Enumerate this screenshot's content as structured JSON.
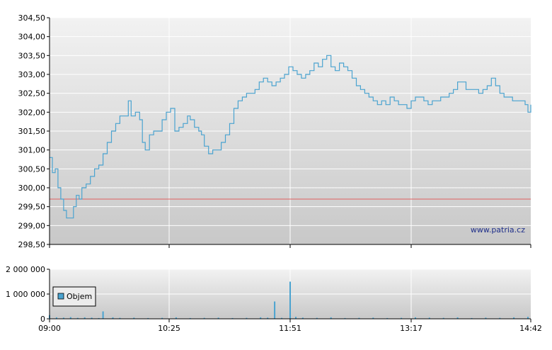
{
  "watermark": "www.patria.cz",
  "colors": {
    "price_line": "#4aa3d0",
    "reference_line": "#e06060",
    "volume_bar": "#4aa3d0",
    "grid": "#ffffff",
    "axis": "#000000"
  },
  "chart_data": [
    {
      "type": "line",
      "title": "",
      "ylim": [
        298.5,
        304.5
      ],
      "y_ticks": [
        "298,50",
        "299,00",
        "299,50",
        "300,00",
        "300,50",
        "301,00",
        "301,50",
        "302,00",
        "302,50",
        "303,00",
        "303,50",
        "304,00",
        "304,50"
      ],
      "y_tick_values": [
        298.5,
        299,
        299.5,
        300,
        300.5,
        301,
        301.5,
        302,
        302.5,
        303,
        303.5,
        304,
        304.5
      ],
      "x_ticks": [
        "09:00",
        "10:25",
        "11:51",
        "13:17",
        "14:42"
      ],
      "reference_value": 299.7,
      "series": [
        {
          "values": [
            [
              "09:00",
              300.8
            ],
            [
              "09:02",
              300.4
            ],
            [
              "09:04",
              300.5
            ],
            [
              "09:06",
              300.0
            ],
            [
              "09:08",
              299.7
            ],
            [
              "09:10",
              299.4
            ],
            [
              "09:12",
              299.2
            ],
            [
              "09:15",
              299.2
            ],
            [
              "09:17",
              299.5
            ],
            [
              "09:19",
              299.8
            ],
            [
              "09:21",
              299.7
            ],
            [
              "09:23",
              300.0
            ],
            [
              "09:26",
              300.1
            ],
            [
              "09:29",
              300.3
            ],
            [
              "09:32",
              300.5
            ],
            [
              "09:35",
              300.6
            ],
            [
              "09:38",
              300.9
            ],
            [
              "09:41",
              301.2
            ],
            [
              "09:44",
              301.5
            ],
            [
              "09:47",
              301.7
            ],
            [
              "09:50",
              301.9
            ],
            [
              "09:53",
              301.9
            ],
            [
              "09:56",
              302.3
            ],
            [
              "09:58",
              301.9
            ],
            [
              "10:01",
              302.0
            ],
            [
              "10:04",
              301.8
            ],
            [
              "10:06",
              301.2
            ],
            [
              "10:08",
              301.0
            ],
            [
              "10:11",
              301.4
            ],
            [
              "10:14",
              301.5
            ],
            [
              "10:17",
              301.5
            ],
            [
              "10:20",
              301.8
            ],
            [
              "10:23",
              302.0
            ],
            [
              "10:26",
              302.1
            ],
            [
              "10:29",
              301.5
            ],
            [
              "10:32",
              301.6
            ],
            [
              "10:35",
              301.7
            ],
            [
              "10:38",
              301.9
            ],
            [
              "10:40",
              301.8
            ],
            [
              "10:43",
              301.6
            ],
            [
              "10:46",
              301.5
            ],
            [
              "10:48",
              301.4
            ],
            [
              "10:50",
              301.1
            ],
            [
              "10:53",
              300.9
            ],
            [
              "10:56",
              301.0
            ],
            [
              "10:59",
              301.0
            ],
            [
              "11:02",
              301.2
            ],
            [
              "11:05",
              301.4
            ],
            [
              "11:08",
              301.7
            ],
            [
              "11:11",
              302.1
            ],
            [
              "11:14",
              302.3
            ],
            [
              "11:17",
              302.4
            ],
            [
              "11:20",
              302.5
            ],
            [
              "11:23",
              302.5
            ],
            [
              "11:26",
              302.6
            ],
            [
              "11:29",
              302.8
            ],
            [
              "11:32",
              302.9
            ],
            [
              "11:35",
              302.8
            ],
            [
              "11:38",
              302.7
            ],
            [
              "11:41",
              302.8
            ],
            [
              "11:44",
              302.9
            ],
            [
              "11:47",
              303.0
            ],
            [
              "11:50",
              303.2
            ],
            [
              "11:53",
              303.1
            ],
            [
              "11:56",
              303.0
            ],
            [
              "11:59",
              302.9
            ],
            [
              "12:02",
              303.0
            ],
            [
              "12:05",
              303.1
            ],
            [
              "12:08",
              303.3
            ],
            [
              "12:11",
              303.2
            ],
            [
              "12:14",
              303.4
            ],
            [
              "12:17",
              303.5
            ],
            [
              "12:20",
              303.2
            ],
            [
              "12:23",
              303.1
            ],
            [
              "12:26",
              303.3
            ],
            [
              "12:29",
              303.2
            ],
            [
              "12:32",
              303.1
            ],
            [
              "12:35",
              302.9
            ],
            [
              "12:38",
              302.7
            ],
            [
              "12:41",
              302.6
            ],
            [
              "12:44",
              302.5
            ],
            [
              "12:47",
              302.4
            ],
            [
              "12:50",
              302.3
            ],
            [
              "12:53",
              302.2
            ],
            [
              "12:56",
              302.3
            ],
            [
              "12:59",
              302.2
            ],
            [
              "13:02",
              302.4
            ],
            [
              "13:05",
              302.3
            ],
            [
              "13:08",
              302.2
            ],
            [
              "13:11",
              302.2
            ],
            [
              "13:14",
              302.1
            ],
            [
              "13:17",
              302.3
            ],
            [
              "13:20",
              302.4
            ],
            [
              "13:23",
              302.4
            ],
            [
              "13:26",
              302.3
            ],
            [
              "13:29",
              302.2
            ],
            [
              "13:32",
              302.3
            ],
            [
              "13:35",
              302.3
            ],
            [
              "13:38",
              302.4
            ],
            [
              "13:41",
              302.4
            ],
            [
              "13:44",
              302.5
            ],
            [
              "13:47",
              302.6
            ],
            [
              "13:50",
              302.8
            ],
            [
              "13:53",
              302.8
            ],
            [
              "13:56",
              302.6
            ],
            [
              "13:59",
              302.6
            ],
            [
              "14:02",
              302.6
            ],
            [
              "14:05",
              302.5
            ],
            [
              "14:08",
              302.6
            ],
            [
              "14:11",
              302.7
            ],
            [
              "14:14",
              302.9
            ],
            [
              "14:17",
              302.7
            ],
            [
              "14:20",
              302.5
            ],
            [
              "14:23",
              302.4
            ],
            [
              "14:26",
              302.4
            ],
            [
              "14:29",
              302.3
            ],
            [
              "14:32",
              302.3
            ],
            [
              "14:35",
              302.3
            ],
            [
              "14:38",
              302.2
            ],
            [
              "14:40",
              302.0
            ],
            [
              "14:42",
              302.2
            ]
          ]
        }
      ]
    },
    {
      "type": "bar",
      "title": "",
      "ylim": [
        0,
        2000000
      ],
      "y_ticks": [
        "0",
        "1 000 000",
        "2 000 000"
      ],
      "y_tick_values": [
        0,
        1000000,
        2000000
      ],
      "x_ticks": [
        "09:00",
        "10:25",
        "11:51",
        "13:17",
        "14:42"
      ],
      "legend": [
        "Objem"
      ],
      "legend_position": "left",
      "series": [
        {
          "name": "Objem",
          "values": [
            [
              "09:00",
              150000
            ],
            [
              "09:05",
              60000
            ],
            [
              "09:10",
              50000
            ],
            [
              "09:15",
              70000
            ],
            [
              "09:20",
              40000
            ],
            [
              "09:25",
              60000
            ],
            [
              "09:30",
              50000
            ],
            [
              "09:35",
              30000
            ],
            [
              "09:38",
              300000
            ],
            [
              "09:45",
              60000
            ],
            [
              "09:50",
              40000
            ],
            [
              "10:00",
              50000
            ],
            [
              "10:10",
              30000
            ],
            [
              "10:20",
              40000
            ],
            [
              "10:30",
              60000
            ],
            [
              "10:40",
              30000
            ],
            [
              "10:50",
              40000
            ],
            [
              "11:00",
              50000
            ],
            [
              "11:10",
              30000
            ],
            [
              "11:20",
              40000
            ],
            [
              "11:30",
              60000
            ],
            [
              "11:35",
              50000
            ],
            [
              "11:40",
              700000
            ],
            [
              "11:45",
              40000
            ],
            [
              "11:51",
              1500000
            ],
            [
              "11:55",
              80000
            ],
            [
              "12:00",
              50000
            ],
            [
              "12:10",
              40000
            ],
            [
              "12:20",
              60000
            ],
            [
              "12:30",
              30000
            ],
            [
              "12:40",
              40000
            ],
            [
              "12:50",
              50000
            ],
            [
              "13:00",
              30000
            ],
            [
              "13:10",
              40000
            ],
            [
              "13:20",
              60000
            ],
            [
              "13:30",
              50000
            ],
            [
              "13:40",
              40000
            ],
            [
              "13:50",
              60000
            ],
            [
              "14:00",
              30000
            ],
            [
              "14:10",
              50000
            ],
            [
              "14:20",
              40000
            ],
            [
              "14:30",
              60000
            ],
            [
              "14:40",
              80000
            ]
          ]
        }
      ]
    }
  ]
}
